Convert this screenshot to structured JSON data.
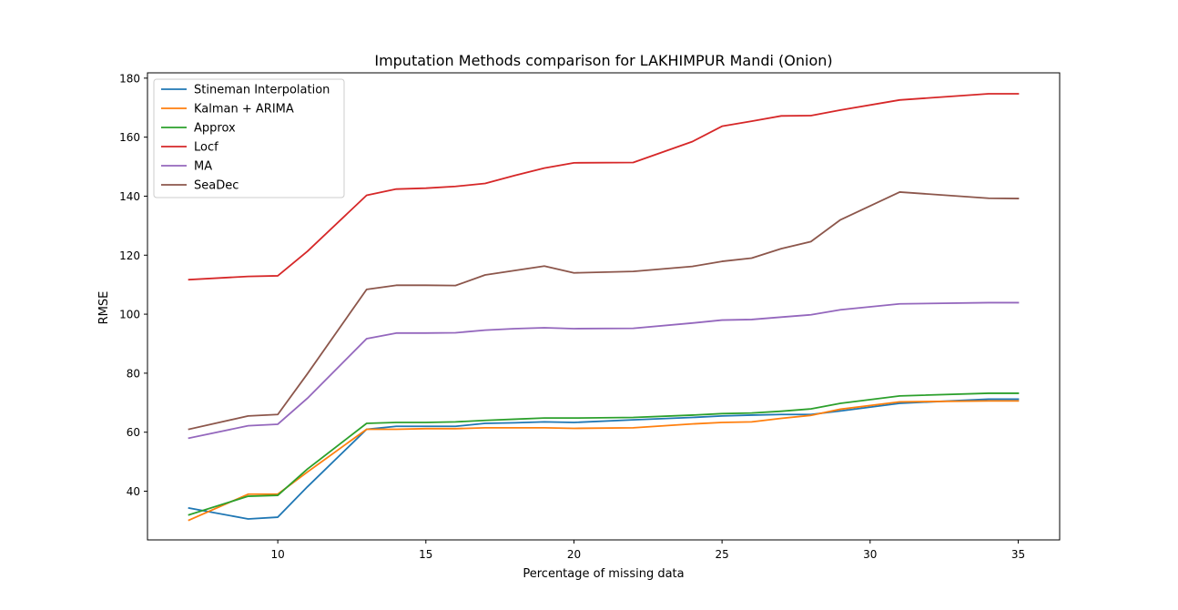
{
  "chart_data": {
    "type": "line",
    "title": "Imputation Methods comparison for LAKHIMPUR Mandi (Onion)",
    "xlabel": "Percentage of missing data",
    "ylabel": "RMSE",
    "xlim": [
      5.6,
      36.4
    ],
    "ylim": [
      23.5,
      181.8
    ],
    "xticks": [
      10,
      15,
      20,
      25,
      30,
      35
    ],
    "yticks": [
      40,
      60,
      80,
      100,
      120,
      140,
      160,
      180
    ],
    "grid": false,
    "legend_position": "top-left",
    "x": [
      7,
      9,
      10,
      11,
      13,
      14,
      15,
      16,
      17,
      18,
      19,
      20,
      22,
      24,
      25,
      26,
      27,
      28,
      29,
      31,
      34,
      35
    ],
    "series": [
      {
        "name": "Stineman Interpolation",
        "color": "#1f77b4",
        "values": [
          34.3,
          30.6,
          31.2,
          41.5,
          61.0,
          62.0,
          62.0,
          62.0,
          63.0,
          63.2,
          63.5,
          63.3,
          64.2,
          65.0,
          65.5,
          65.8,
          66.0,
          66.0,
          67.2,
          69.8,
          71.2,
          71.2
        ]
      },
      {
        "name": "Kalman + ARIMA",
        "color": "#ff7f0e",
        "values": [
          30.2,
          39.0,
          39.0,
          46.5,
          61.0,
          61.0,
          61.2,
          61.2,
          61.5,
          61.5,
          61.5,
          61.3,
          61.5,
          62.8,
          63.3,
          63.5,
          64.7,
          65.7,
          67.8,
          70.3,
          70.6,
          70.6
        ]
      },
      {
        "name": "Approx",
        "color": "#2ca02c",
        "values": [
          32.0,
          38.3,
          38.6,
          47.5,
          63.0,
          63.3,
          63.3,
          63.5,
          64.0,
          64.4,
          64.8,
          64.8,
          65.0,
          65.8,
          66.3,
          66.5,
          67.1,
          67.9,
          69.8,
          72.3,
          73.2,
          73.2
        ]
      },
      {
        "name": "Locf",
        "color": "#d62728",
        "values": [
          111.7,
          112.8,
          113.0,
          121.3,
          140.3,
          142.4,
          142.7,
          143.3,
          144.3,
          147.0,
          149.5,
          151.3,
          151.4,
          158.5,
          163.7,
          165.4,
          167.2,
          167.3,
          169.2,
          172.6,
          174.7,
          174.7
        ]
      },
      {
        "name": "MA",
        "color": "#9467bd",
        "values": [
          58.0,
          62.2,
          62.7,
          71.5,
          91.7,
          93.6,
          93.6,
          93.7,
          94.6,
          95.1,
          95.4,
          95.1,
          95.2,
          97.0,
          98.0,
          98.2,
          99.0,
          99.8,
          101.5,
          103.5,
          103.9,
          103.9
        ]
      },
      {
        "name": "SeaDec",
        "color": "#8c564b",
        "values": [
          61.0,
          65.5,
          66.0,
          79.8,
          108.4,
          109.8,
          109.8,
          109.7,
          113.3,
          114.8,
          116.3,
          114.0,
          114.5,
          116.2,
          117.9,
          119.0,
          122.2,
          124.6,
          132.0,
          141.4,
          139.3,
          139.2
        ]
      }
    ]
  }
}
